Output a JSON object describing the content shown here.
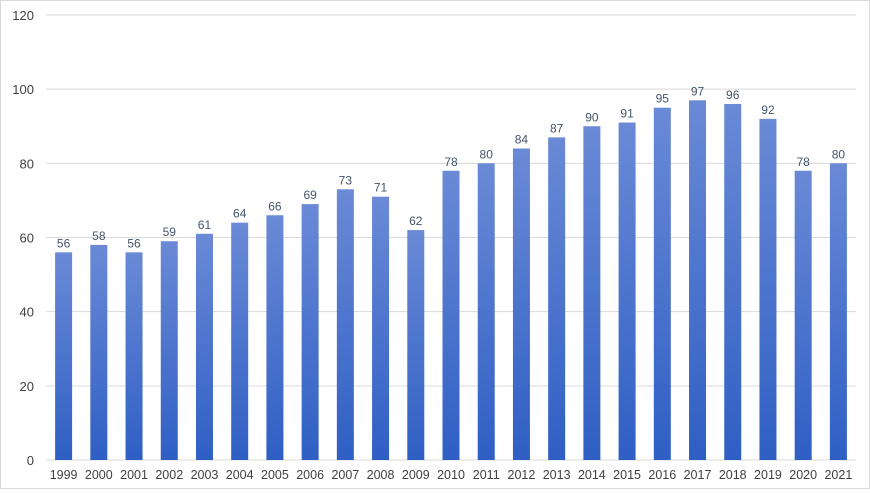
{
  "chart_data": {
    "type": "bar",
    "title": "",
    "xlabel": "",
    "ylabel": "",
    "categories": [
      "1999",
      "2000",
      "2001",
      "2002",
      "2003",
      "2004",
      "2005",
      "2006",
      "2007",
      "2008",
      "2009",
      "2010",
      "2011",
      "2012",
      "2013",
      "2014",
      "2015",
      "2016",
      "2017",
      "2018",
      "2019",
      "2020",
      "2021"
    ],
    "values": [
      56,
      58,
      56,
      59,
      61,
      64,
      66,
      69,
      73,
      71,
      62,
      78,
      80,
      84,
      87,
      90,
      91,
      95,
      97,
      96,
      92,
      78,
      80
    ],
    "data_labels": [
      "56",
      "58",
      "56",
      "59",
      "61",
      "64",
      "66",
      "69",
      "73",
      "71",
      "62",
      "78",
      "80",
      "84",
      "87",
      "90",
      "91",
      "95",
      "97",
      "96",
      "92",
      "78",
      "80"
    ],
    "ylim": [
      0,
      120
    ],
    "yticks": [
      0,
      20,
      40,
      60,
      80,
      100,
      120
    ],
    "grid": true,
    "legend": "none",
    "colors": {
      "bar_top": "#6a8ad6",
      "bar_bottom": "#2f5fc4",
      "gridline": "#d9d9d9",
      "text": "#404040",
      "data_label": "#44546a"
    }
  }
}
